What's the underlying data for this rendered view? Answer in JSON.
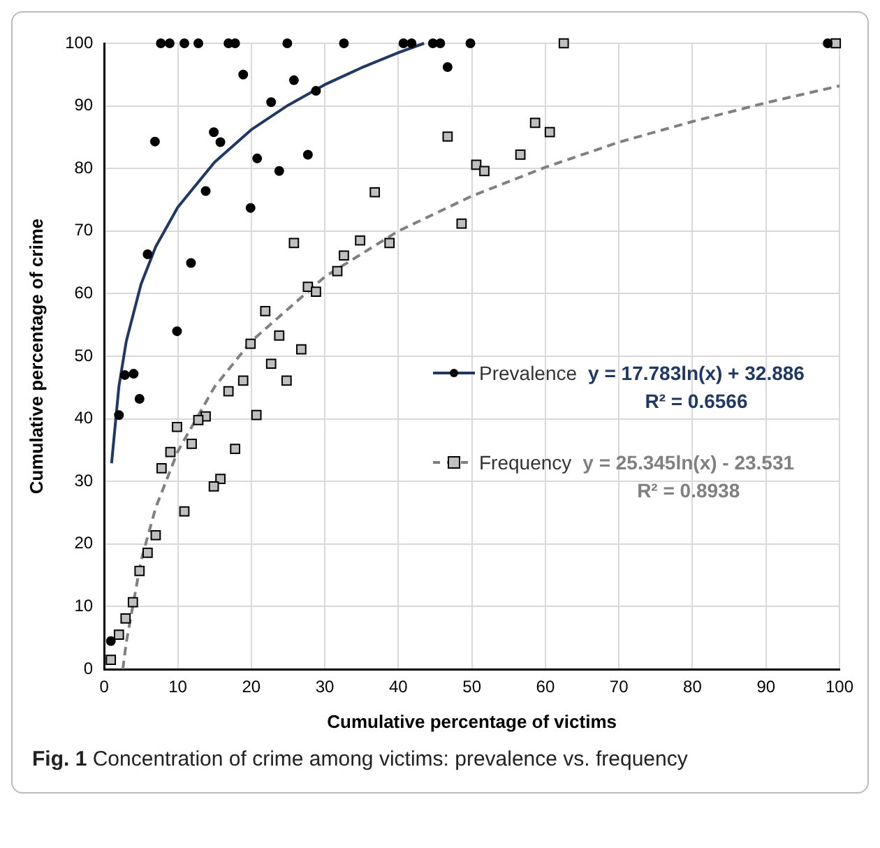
{
  "chart_data": {
    "type": "scatter",
    "xlabel": "Cumulative percentage of victims",
    "ylabel": "Cumulative percentage of crime",
    "xlim": [
      0,
      100
    ],
    "ylim": [
      0,
      100
    ],
    "xticks": [
      0,
      10,
      20,
      30,
      40,
      50,
      60,
      70,
      80,
      90,
      100
    ],
    "yticks": [
      0,
      10,
      20,
      30,
      40,
      50,
      60,
      70,
      80,
      90,
      100
    ],
    "grid": true,
    "legend": "right",
    "series": [
      {
        "name": "Prevalence",
        "marker": "circle",
        "color": "#000000",
        "x": [
          7.7,
          8.9,
          10.9,
          12.8,
          16.9,
          17.8,
          24.9,
          32.6,
          40.7,
          41.8,
          44.7,
          45.7,
          49.8,
          98.4,
          18.9,
          25.8,
          28.8,
          22.7,
          6.9,
          14.9,
          15.8,
          20.8,
          27.7,
          23.8,
          13.8,
          19.9,
          5.9,
          11.8,
          9.9,
          2.8,
          4.0,
          4.8,
          2.0,
          0.9,
          46.7
        ],
        "values": [
          100,
          100,
          100,
          100,
          100,
          100,
          100,
          100,
          100,
          100,
          100,
          100,
          100,
          100,
          95.0,
          94.1,
          92.4,
          90.6,
          84.3,
          85.8,
          84.2,
          81.6,
          82.2,
          79.6,
          76.4,
          73.7,
          66.3,
          64.9,
          54.0,
          47.0,
          47.2,
          43.2,
          40.6,
          4.5,
          96.2
        ]
      },
      {
        "type": "line",
        "marker": "none",
        "line_style": "solid",
        "color": "#1f3864",
        "x": [
          1,
          2,
          3,
          5,
          7,
          10,
          15,
          20,
          25,
          30,
          35,
          40,
          43.5
        ],
        "values": [
          32.9,
          45.2,
          52.4,
          61.5,
          67.5,
          73.8,
          81,
          86.2,
          90.1,
          93.4,
          96.1,
          98.5,
          100
        ]
      },
      {
        "name": "Frequency",
        "marker": "square",
        "color": "#bfbfbf",
        "x": [
          25.8,
          32.6,
          31.7,
          27.7,
          28.8,
          21.9,
          23.8,
          19.9,
          26.8,
          22.7,
          18.9,
          16.9,
          24.8,
          13.8,
          12.8,
          20.7,
          9.9,
          11.9,
          17.8,
          9.0,
          7.8,
          15.8,
          14.9,
          10.9,
          7.0,
          5.9,
          4.8,
          3.9,
          2.9,
          2.0,
          0.9,
          62.5,
          46.7,
          58.6,
          60.6,
          56.6,
          50.6,
          51.7,
          36.8,
          48.6,
          34.8,
          38.8,
          99.5
        ],
        "values": [
          68.1,
          66.1,
          63.6,
          61.1,
          60.3,
          57.2,
          53.3,
          52.0,
          51.1,
          48.8,
          46.1,
          44.4,
          46.1,
          40.4,
          39.8,
          40.6,
          38.7,
          36.0,
          35.2,
          34.7,
          32.1,
          30.4,
          29.2,
          25.2,
          21.4,
          18.6,
          15.7,
          10.7,
          8.1,
          5.5,
          1.5,
          100,
          85.1,
          87.3,
          85.8,
          82.2,
          80.6,
          79.6,
          76.2,
          71.2,
          68.5,
          68.1,
          100
        ]
      },
      {
        "type": "line",
        "marker": "none",
        "line_style": "dashed",
        "color": "#808080",
        "x": [
          2.53,
          3,
          5,
          7,
          10,
          15,
          20,
          30,
          40,
          50,
          60,
          70,
          80,
          90,
          100
        ],
        "values": [
          0,
          4.3,
          17.3,
          25.8,
          34.8,
          45.1,
          52.4,
          62.7,
          70,
          75.6,
          80.2,
          84.2,
          87.5,
          90.5,
          93.2
        ]
      }
    ],
    "annotations": [
      "y = 17.783ln(x) + 32.886",
      "R² = 0.6566",
      "y = 25.345ln(x) - 23.531",
      "R² = 0.8938",
      "Fig. 1  Concentration of crime among victims: prevalence vs. frequency"
    ]
  }
}
